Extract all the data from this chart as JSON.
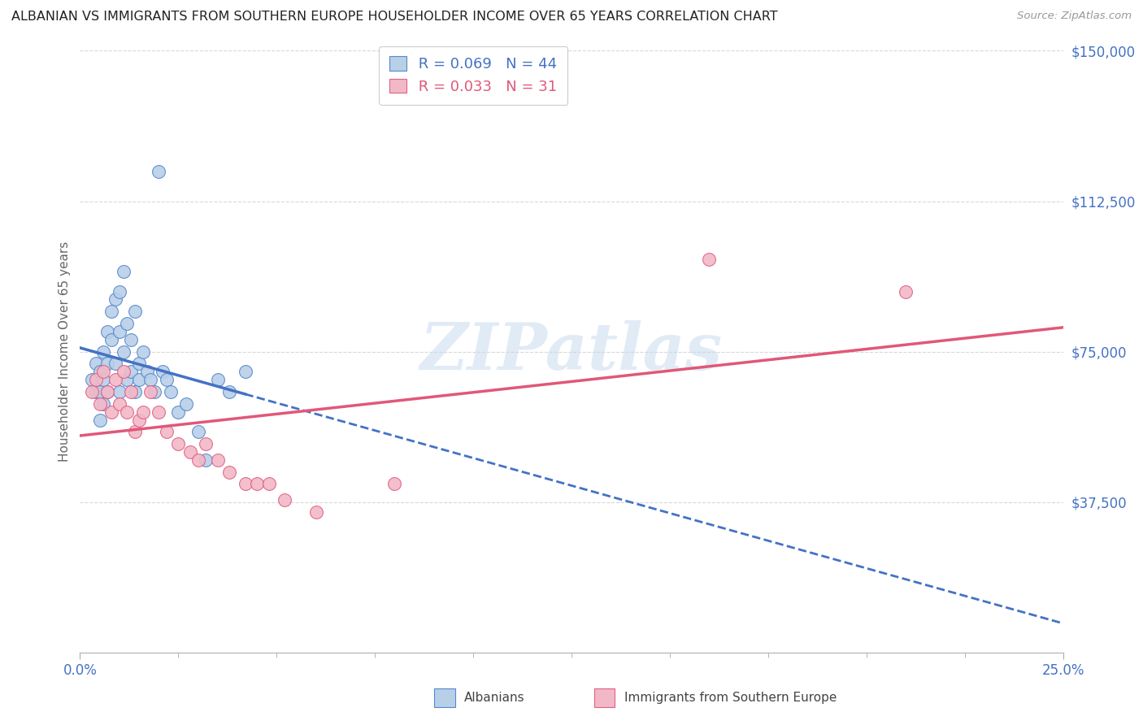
{
  "title": "ALBANIAN VS IMMIGRANTS FROM SOUTHERN EUROPE HOUSEHOLDER INCOME OVER 65 YEARS CORRELATION CHART",
  "source": "Source: ZipAtlas.com",
  "ylabel": "Householder Income Over 65 years",
  "xlim": [
    0.0,
    0.25
  ],
  "ylim": [
    0,
    150000
  ],
  "yticks": [
    0,
    37500,
    75000,
    112500,
    150000
  ],
  "ytick_labels": [
    "",
    "$37,500",
    "$75,000",
    "$112,500",
    "$150,000"
  ],
  "background_color": "#ffffff",
  "grid_color": "#d8d8d8",
  "watermark_text": "ZIPatlas",
  "blue_R": 0.069,
  "blue_N": 44,
  "pink_R": 0.033,
  "pink_N": 31,
  "blue_fill": "#b8cfe8",
  "blue_edge": "#5588cc",
  "pink_fill": "#f2b8c8",
  "pink_edge": "#e06080",
  "blue_line": "#4472c4",
  "pink_line": "#e05878",
  "blue_scatter_x": [
    0.003,
    0.004,
    0.004,
    0.005,
    0.005,
    0.005,
    0.006,
    0.006,
    0.006,
    0.007,
    0.007,
    0.007,
    0.008,
    0.008,
    0.009,
    0.009,
    0.01,
    0.01,
    0.01,
    0.011,
    0.011,
    0.012,
    0.012,
    0.013,
    0.013,
    0.014,
    0.014,
    0.015,
    0.015,
    0.016,
    0.017,
    0.018,
    0.019,
    0.02,
    0.021,
    0.022,
    0.023,
    0.025,
    0.027,
    0.03,
    0.032,
    0.035,
    0.038,
    0.042
  ],
  "blue_scatter_y": [
    68000,
    65000,
    72000,
    70000,
    65000,
    58000,
    75000,
    68000,
    62000,
    80000,
    72000,
    65000,
    85000,
    78000,
    88000,
    72000,
    90000,
    80000,
    65000,
    95000,
    75000,
    82000,
    68000,
    78000,
    70000,
    85000,
    65000,
    72000,
    68000,
    75000,
    70000,
    68000,
    65000,
    120000,
    70000,
    68000,
    65000,
    60000,
    62000,
    55000,
    48000,
    68000,
    65000,
    70000
  ],
  "pink_scatter_x": [
    0.003,
    0.004,
    0.005,
    0.006,
    0.007,
    0.008,
    0.009,
    0.01,
    0.011,
    0.012,
    0.013,
    0.014,
    0.015,
    0.016,
    0.018,
    0.02,
    0.022,
    0.025,
    0.028,
    0.03,
    0.032,
    0.035,
    0.038,
    0.042,
    0.045,
    0.048,
    0.052,
    0.06,
    0.08,
    0.16,
    0.21
  ],
  "pink_scatter_y": [
    65000,
    68000,
    62000,
    70000,
    65000,
    60000,
    68000,
    62000,
    70000,
    60000,
    65000,
    55000,
    58000,
    60000,
    65000,
    60000,
    55000,
    52000,
    50000,
    48000,
    52000,
    48000,
    45000,
    42000,
    42000,
    42000,
    38000,
    35000,
    42000,
    98000,
    90000
  ]
}
